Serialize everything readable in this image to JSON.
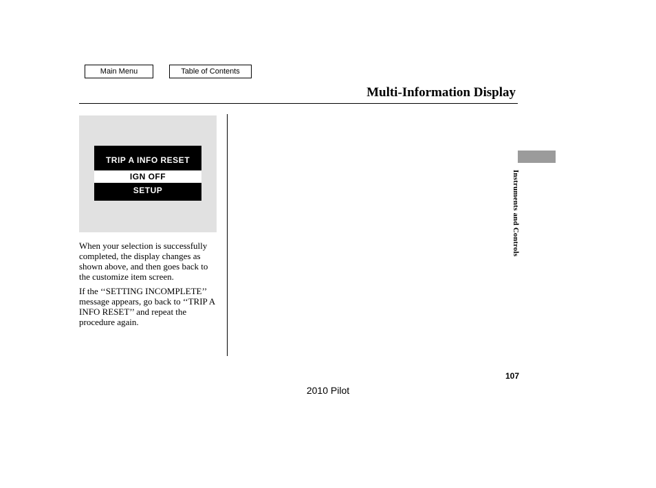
{
  "nav": {
    "main_menu": "Main Menu",
    "toc": "Table of Contents"
  },
  "title": "Multi-Information Display",
  "side_caption": "Instruments and Controls",
  "display": {
    "line1": "TRIP A INFO RESET",
    "line2": "IGN OFF",
    "line3": "SETUP",
    "bg": "#e1e1e1",
    "screen_bg": "#000000",
    "screen_fg": "#ffffff",
    "bar_bg": "#ffffff",
    "bar_fg": "#000000"
  },
  "paragraphs": {
    "p1": "When your selection is successfully completed, the display changes as shown above, and then goes back to the customize item screen.",
    "p2": "If the ‘‘SETTING INCOMPLETE’’ message appears, go back to ‘‘TRIP A INFO RESET’’ and repeat the procedure again."
  },
  "page_number": "107",
  "model_year": "2010 Pilot",
  "colors": {
    "sidetab": "#9b9b9b",
    "rule": "#000000"
  },
  "fonts": {
    "title_pt": 19,
    "body_pt": 13,
    "nav_pt": 11,
    "side_pt": 11
  }
}
